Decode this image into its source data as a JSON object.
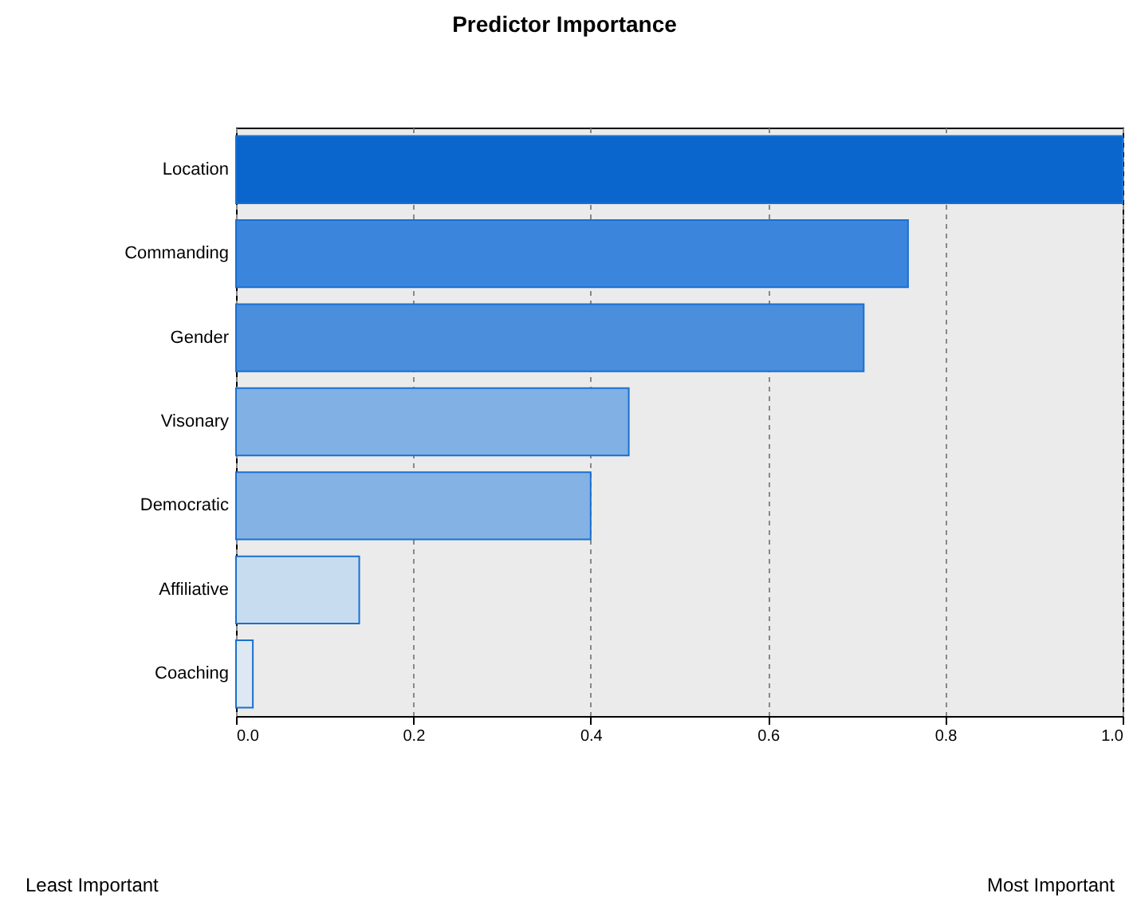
{
  "chart_data": {
    "type": "bar",
    "orientation": "horizontal",
    "title": "Predictor Importance",
    "categories": [
      "Location",
      "Commanding",
      "Gender",
      "Visonary",
      "Democratic",
      "Affiliative",
      "Coaching"
    ],
    "values": [
      1.0,
      0.758,
      0.708,
      0.443,
      0.4,
      0.139,
      0.019
    ],
    "colors": [
      "#0a66cc",
      "#3b86dc",
      "#4a8edc",
      "#80b0e4",
      "#85b2e4",
      "#c8dcf0",
      "#dde8f2"
    ],
    "xlim": [
      0,
      1
    ],
    "xticks": [
      {
        "value": 0,
        "label": "0.0"
      },
      {
        "value": 0.2,
        "label": "0.2"
      },
      {
        "value": 0.4,
        "label": "0.4"
      },
      {
        "value": 0.6,
        "label": "0.6"
      },
      {
        "value": 0.8,
        "label": "0.8"
      },
      {
        "value": 1,
        "label": "1.0"
      }
    ],
    "grid": "x",
    "annotations": [
      "Least Important",
      "Most Important"
    ]
  }
}
